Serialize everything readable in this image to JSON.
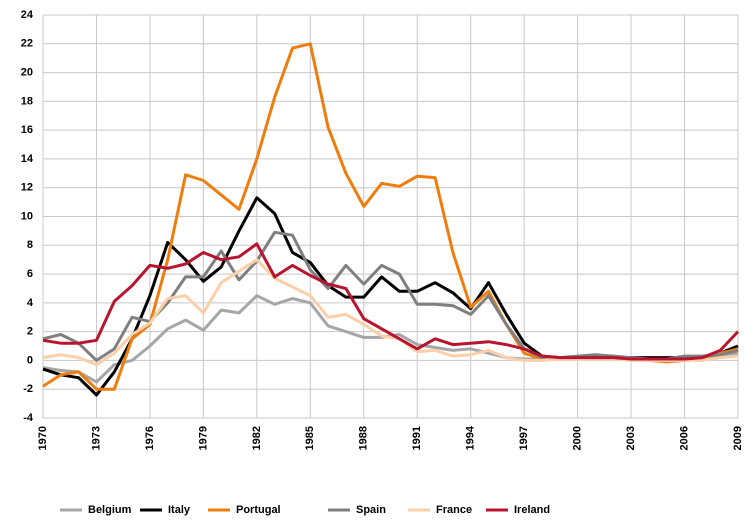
{
  "chart_data": {
    "type": "line",
    "x": [
      1970,
      1971,
      1972,
      1973,
      1974,
      1975,
      1976,
      1977,
      1978,
      1979,
      1980,
      1981,
      1982,
      1983,
      1984,
      1985,
      1986,
      1987,
      1988,
      1989,
      1990,
      1991,
      1992,
      1993,
      1994,
      1995,
      1996,
      1997,
      1998,
      1999,
      2000,
      2001,
      2002,
      2003,
      2004,
      2005,
      2006,
      2007,
      2008,
      2009
    ],
    "xlim": [
      1970,
      2009
    ],
    "xticks": [
      1970,
      1973,
      1976,
      1979,
      1982,
      1985,
      1988,
      1991,
      1994,
      1997,
      2000,
      2003,
      2006,
      2009
    ],
    "ylim": [
      -4,
      24
    ],
    "yticks": [
      -4,
      -2,
      0,
      2,
      4,
      6,
      8,
      10,
      12,
      14,
      16,
      18,
      20,
      22,
      24
    ],
    "grid": true,
    "legend": "bottom",
    "series": [
      {
        "name": "Belgium",
        "color": "#a6a6a6",
        "values": [
          -0.5,
          -0.7,
          -0.8,
          -1.5,
          -0.3,
          0.0,
          1.0,
          2.2,
          2.8,
          2.1,
          3.5,
          3.3,
          4.5,
          3.9,
          4.3,
          4.0,
          2.4,
          2.0,
          1.6,
          1.6,
          1.8,
          1.1,
          0.9,
          0.7,
          0.8,
          0.5,
          0.2,
          0.1,
          0.1,
          0.1,
          0.2,
          0.2,
          0.1,
          0.1,
          0.1,
          0.1,
          0.2,
          0.2,
          0.3,
          0.5
        ]
      },
      {
        "name": "Italy",
        "color": "#000000",
        "values": [
          -0.6,
          -1.0,
          -1.2,
          -2.4,
          -0.8,
          1.5,
          4.5,
          8.2,
          7.0,
          5.5,
          6.5,
          9.0,
          11.3,
          10.2,
          7.5,
          6.8,
          5.2,
          4.4,
          4.4,
          5.8,
          4.8,
          4.8,
          5.4,
          4.7,
          3.6,
          5.4,
          3.2,
          1.2,
          0.3,
          0.2,
          0.2,
          0.3,
          0.2,
          0.2,
          0.2,
          0.2,
          0.2,
          0.2,
          0.5,
          1.0
        ]
      },
      {
        "name": "Portugal",
        "color": "#ee7d0e",
        "values": [
          -1.8,
          -1.0,
          -0.8,
          -2.0,
          -2.0,
          1.5,
          2.5,
          7.0,
          12.9,
          12.5,
          11.5,
          10.5,
          14.0,
          18.3,
          21.7,
          22.0,
          16.2,
          13.0,
          10.7,
          12.3,
          12.1,
          12.8,
          12.7,
          7.5,
          3.7,
          4.8,
          2.5,
          0.5,
          0.1,
          0.2,
          0.2,
          0.2,
          0.2,
          0.1,
          0.0,
          -0.1,
          0.0,
          0.1,
          0.5,
          0.8
        ]
      },
      {
        "name": "Spain",
        "color": "#7f7f7f",
        "values": [
          1.5,
          1.8,
          1.2,
          0.0,
          0.8,
          3.0,
          2.7,
          4.0,
          5.8,
          5.8,
          7.6,
          5.6,
          6.9,
          8.9,
          8.7,
          6.3,
          5.0,
          6.6,
          5.3,
          6.6,
          6.0,
          3.9,
          3.9,
          3.8,
          3.2,
          4.5,
          2.5,
          0.8,
          0.2,
          0.2,
          0.3,
          0.4,
          0.3,
          0.2,
          0.1,
          0.1,
          0.3,
          0.3,
          0.4,
          0.7
        ]
      },
      {
        "name": "France",
        "color": "#fbcfa8",
        "values": [
          0.2,
          0.4,
          0.2,
          -0.3,
          0.5,
          1.8,
          2.6,
          4.3,
          4.5,
          3.3,
          5.4,
          6.2,
          7.0,
          5.7,
          5.1,
          4.5,
          3.0,
          3.2,
          2.5,
          1.7,
          1.5,
          0.6,
          0.7,
          0.3,
          0.4,
          0.7,
          0.2,
          0.0,
          0.0,
          0.1,
          0.1,
          0.1,
          0.1,
          0.0,
          0.0,
          0.0,
          0.0,
          0.0,
          0.2,
          0.3
        ]
      },
      {
        "name": "Ireland",
        "color": "#b81430",
        "values": [
          1.4,
          1.2,
          1.2,
          1.4,
          4.1,
          5.2,
          6.6,
          6.4,
          6.7,
          7.5,
          7.0,
          7.2,
          8.1,
          5.8,
          6.6,
          5.9,
          5.3,
          5.0,
          2.9,
          2.2,
          1.5,
          0.8,
          1.5,
          1.1,
          1.2,
          1.3,
          1.1,
          0.8,
          0.3,
          0.2,
          0.2,
          0.2,
          0.2,
          0.1,
          0.1,
          0.1,
          0.1,
          0.2,
          0.7,
          2.0
        ]
      }
    ]
  }
}
